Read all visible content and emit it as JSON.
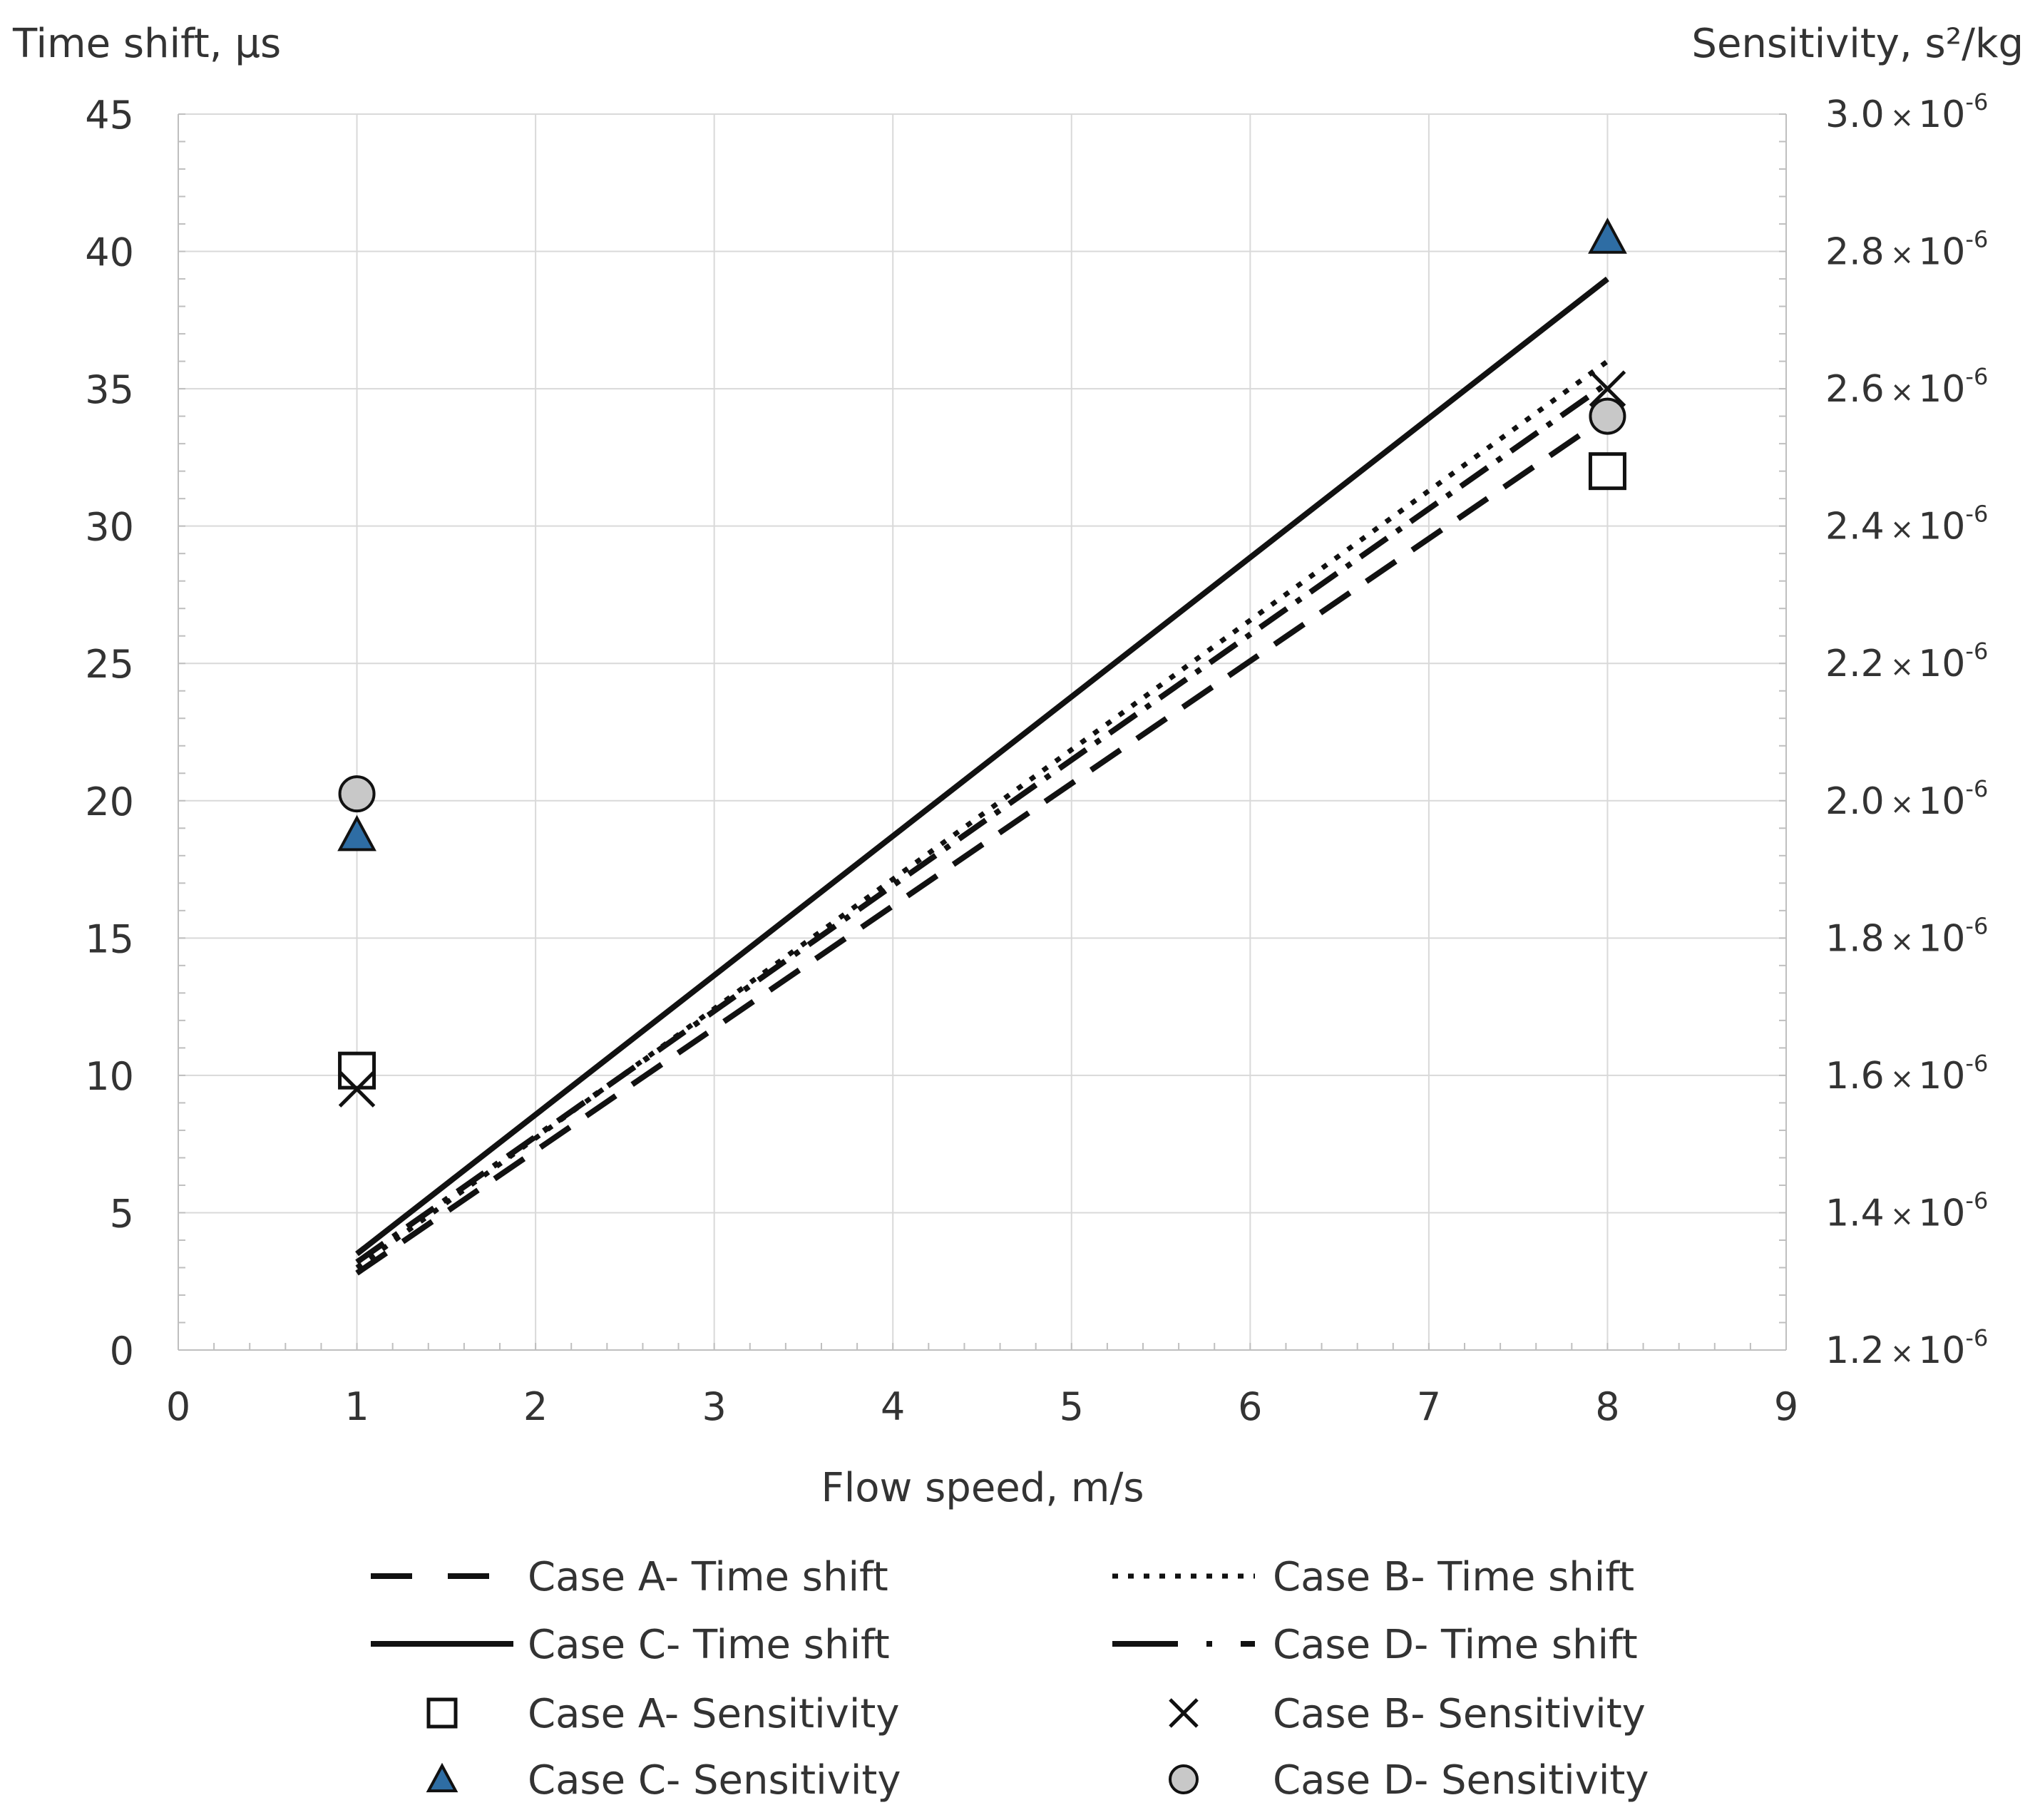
{
  "chart_data": {
    "type": "line",
    "title": "",
    "xlabel": "Flow speed, m/s",
    "ylabel_left": "Time shift, μs",
    "ylabel_right": "Sensitivity, s²/kg",
    "xlim": [
      0,
      9
    ],
    "ylim_left": [
      0,
      45
    ],
    "ylim_right": [
      1.2e-06,
      3e-06
    ],
    "x_ticks": [
      "0",
      "1",
      "2",
      "3",
      "4",
      "5",
      "6",
      "7",
      "8",
      "9"
    ],
    "y_ticks_left": [
      "0",
      "5",
      "10",
      "15",
      "20",
      "25",
      "30",
      "35",
      "40",
      "45"
    ],
    "y_ticks_right": [
      {
        "mantissa": "1.2",
        "exp": "-6"
      },
      {
        "mantissa": "1.4",
        "exp": "-6"
      },
      {
        "mantissa": "1.6",
        "exp": "-6"
      },
      {
        "mantissa": "1.8",
        "exp": "-6"
      },
      {
        "mantissa": "2.0",
        "exp": "-6"
      },
      {
        "mantissa": "2.2",
        "exp": "-6"
      },
      {
        "mantissa": "2.4",
        "exp": "-6"
      },
      {
        "mantissa": "2.6",
        "exp": "-6"
      },
      {
        "mantissa": "2.8",
        "exp": "-6"
      },
      {
        "mantissa": "3.0",
        "exp": "-6"
      }
    ],
    "times_symbol": "×",
    "tick_base": "10",
    "grid": true,
    "line_series": [
      {
        "name": "Case A- Time shift",
        "style": "dash",
        "axis": "left",
        "x": [
          1,
          8
        ],
        "y": [
          2.8,
          34.0
        ]
      },
      {
        "name": "Case B- Time shift",
        "style": "dot",
        "axis": "left",
        "x": [
          1,
          8
        ],
        "y": [
          3.0,
          36.0
        ]
      },
      {
        "name": "Case C- Time shift",
        "style": "solid",
        "axis": "left",
        "x": [
          1,
          8
        ],
        "y": [
          3.5,
          39.0
        ]
      },
      {
        "name": "Case D- Time shift",
        "style": "dashdot",
        "axis": "left",
        "x": [
          1,
          8
        ],
        "y": [
          3.2,
          35.2
        ]
      }
    ],
    "marker_series": [
      {
        "name": "Case A- Sensitivity",
        "marker": "square",
        "axis": "right",
        "x": [
          1,
          8
        ],
        "y": [
          1.607e-06,
          2.48e-06
        ]
      },
      {
        "name": "Case B- Sensitivity",
        "marker": "x",
        "axis": "right",
        "x": [
          1,
          8
        ],
        "y": [
          1.58e-06,
          2.6e-06
        ]
      },
      {
        "name": "Case C- Sensitivity",
        "marker": "triangle",
        "axis": "right",
        "x": [
          1,
          8
        ],
        "y": [
          1.95e-06,
          2.82e-06
        ]
      },
      {
        "name": "Case D- Sensitivity",
        "marker": "circle",
        "axis": "right",
        "x": [
          1,
          8
        ],
        "y": [
          2.01e-06,
          2.56e-06
        ]
      }
    ],
    "legend_position": "bottom",
    "colors": {
      "line": "#111111",
      "grid": "#d9d9d9",
      "triangle_fill": "#2e6da4",
      "circle_fill": "#c8c8c8",
      "text": "#333333"
    }
  }
}
